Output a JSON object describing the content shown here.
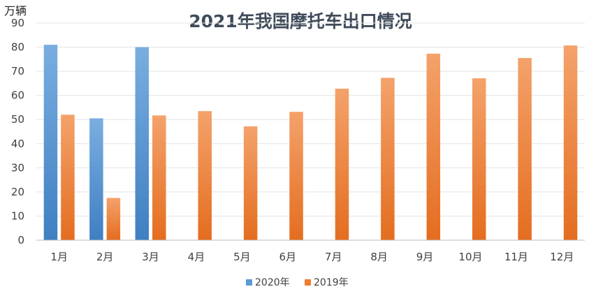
{
  "chart_data": {
    "type": "bar",
    "title": "2021年我国摩托车出口情况",
    "ylabel": "万辆",
    "xlabel": "",
    "ylim": [
      0,
      90
    ],
    "yticks": [
      0,
      10,
      20,
      30,
      40,
      50,
      60,
      70,
      80,
      90
    ],
    "grid": true,
    "legend_position": "bottom",
    "categories": [
      "1月",
      "2月",
      "3月",
      "4月",
      "5月",
      "6月",
      "7月",
      "8月",
      "9月",
      "10月",
      "11月",
      "12月"
    ],
    "series": [
      {
        "name": "2020年",
        "color": "#5b9bd5",
        "values": [
          81,
          50.5,
          80,
          null,
          null,
          null,
          null,
          null,
          null,
          null,
          null,
          null
        ]
      },
      {
        "name": "2019年",
        "color": "#ed7d31",
        "values": [
          52,
          17.5,
          51.7,
          53.5,
          47.2,
          53.2,
          62.8,
          67.3,
          77.3,
          67.1,
          75.5,
          80.7
        ]
      }
    ]
  }
}
